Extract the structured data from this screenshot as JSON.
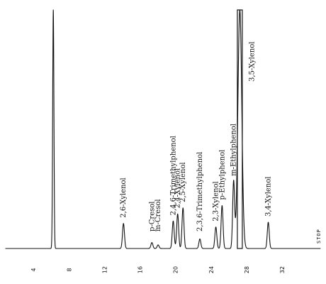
{
  "chart_data": {
    "type": "line",
    "x_ticks": [
      4,
      8,
      12,
      16,
      20,
      24,
      28,
      32
    ],
    "x_range": [
      0,
      36.7
    ],
    "y_range": [
      0,
      100
    ],
    "trace_color": "#111111",
    "solvent_peak": {
      "x": 6.0,
      "y": 100
    },
    "peaks": [
      {
        "x": 13.9,
        "y": 10.5,
        "label": "2,6-Xylenol"
      },
      {
        "x": 17.1,
        "y": 2.5,
        "label": "p-Cresol"
      },
      {
        "x": 17.8,
        "y": 1.5,
        "label": "m-Cresol"
      },
      {
        "x": 19.5,
        "y": 11.5,
        "label": "2,4,6-Trimethylphenol"
      },
      {
        "x": 20.0,
        "y": 14.5,
        "label": "2,4-Xylenol"
      },
      {
        "x": 20.6,
        "y": 17.0,
        "label": "2,5-Xylenol"
      },
      {
        "x": 22.5,
        "y": 4.0,
        "label": "2,3,6-Trimethylphenol"
      },
      {
        "x": 24.3,
        "y": 9.0,
        "label": "2,3-Xylenol"
      },
      {
        "x": 25.0,
        "y": 18.0,
        "label": "p-Ethylphenol"
      },
      {
        "x": 26.3,
        "y": 28.0,
        "label": "m-Ethylphenol"
      },
      {
        "x": 27.0,
        "y": 100,
        "label": "3,5-Xylenol"
      },
      {
        "x": 30.2,
        "y": 11.0,
        "label": "3,4-Xylenol"
      }
    ],
    "end_marker": "STOP"
  }
}
